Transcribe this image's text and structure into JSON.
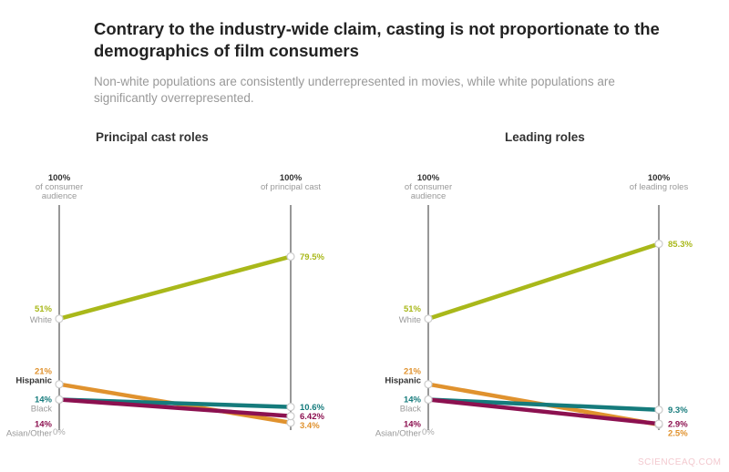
{
  "title": "Contrary to the industry-wide claim, casting is not proportionate to the demographics of film consumers",
  "subtitle": "Non-white populations are consistently underrepresented in movies, while white populations are significantly overrepresented.",
  "watermark": "SCIENCEAQ.COM",
  "chart_data": [
    {
      "type": "slope",
      "title": "Principal cast roles",
      "left_axis": {
        "top": "100%",
        "label": "of consumer audience",
        "bottom": "0%"
      },
      "right_axis": {
        "top": "100%",
        "label": "of principal cast"
      },
      "ylim": [
        0,
        100
      ],
      "series": [
        {
          "name": "White",
          "color": "#a9b81a",
          "left": 51,
          "right": 79.5,
          "left_label": "51%",
          "right_label": "79.5%"
        },
        {
          "name": "Hispanic",
          "color": "#e0922e",
          "left": 21,
          "right": 3.4,
          "left_label": "21%",
          "right_label": "3.4%"
        },
        {
          "name": "Black",
          "color": "#157b7c",
          "left": 14,
          "right": 10.6,
          "left_label": "14%",
          "right_label": "10.6%"
        },
        {
          "name": "Asian/Other",
          "color": "#8c1150",
          "left": 14,
          "right": 6.42,
          "left_label": "14%",
          "right_label": "6.42%"
        }
      ]
    },
    {
      "type": "slope",
      "title": "Leading roles",
      "left_axis": {
        "top": "100%",
        "label": "of consumer audience",
        "bottom": "0%"
      },
      "right_axis": {
        "top": "100%",
        "label": "of leading roles"
      },
      "ylim": [
        0,
        100
      ],
      "series": [
        {
          "name": "White",
          "color": "#a9b81a",
          "left": 51,
          "right": 85.3,
          "left_label": "51%",
          "right_label": "85.3%"
        },
        {
          "name": "Hispanic",
          "color": "#e0922e",
          "left": 21,
          "right": 2.5,
          "left_label": "21%",
          "right_label": "2.5%"
        },
        {
          "name": "Black",
          "color": "#157b7c",
          "left": 14,
          "right": 9.3,
          "left_label": "14%",
          "right_label": "9.3%"
        },
        {
          "name": "Asian/Other",
          "color": "#8c1150",
          "left": 14,
          "right": 2.9,
          "left_label": "14%",
          "right_label": "2.9%"
        }
      ]
    }
  ]
}
